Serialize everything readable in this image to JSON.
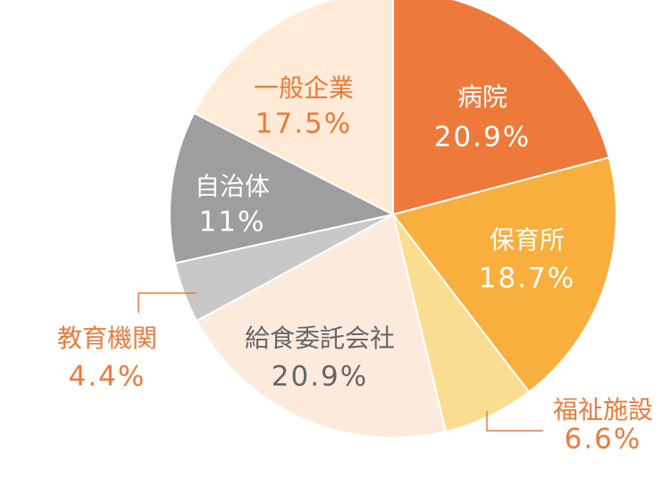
{
  "chart_data": {
    "type": "pie",
    "title": "",
    "slices": [
      {
        "label": "病院",
        "value": 20.9,
        "value_text": "20.9%",
        "color": "#ED7A3B",
        "label_color": "#ffffff"
      },
      {
        "label": "保育所",
        "value": 18.7,
        "value_text": "18.7%",
        "color": "#F9AF3D",
        "label_color": "#ffffff"
      },
      {
        "label": "福祉施設",
        "value": 6.6,
        "value_text": "6.6%",
        "color": "#FADD90",
        "label_color": "#ED7A3B"
      },
      {
        "label": "給食委託会社",
        "value": 20.9,
        "value_text": "20.9%",
        "color": "#FCEBDC",
        "label_color": "#666666"
      },
      {
        "label": "教育機関",
        "value": 4.4,
        "value_text": "4.4%",
        "color": "#C8C8C8",
        "label_color": "#ED7A3B"
      },
      {
        "label": "自治体",
        "value": 11,
        "value_text": "11%",
        "color": "#9E9E9E",
        "label_color": "#ffffff"
      },
      {
        "label": "一般企業",
        "value": 17.5,
        "value_text": "17.5%",
        "color": "#FFEBD7",
        "label_color": "#ED7A3B"
      }
    ]
  }
}
